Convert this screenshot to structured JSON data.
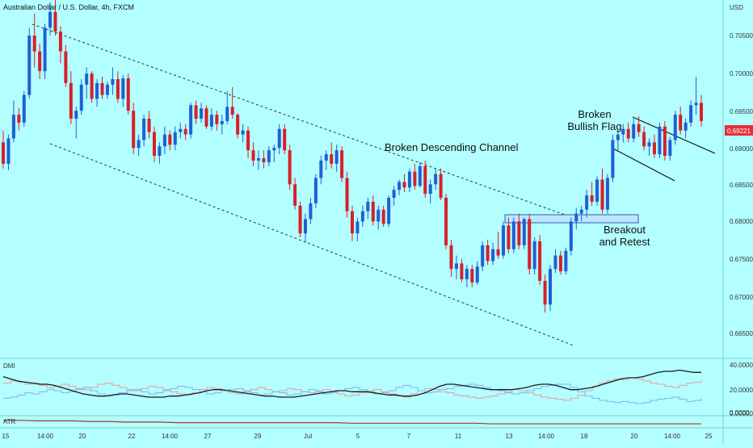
{
  "header": {
    "title": "Australian Dollar / U.S. Dollar, 4h, FXCM"
  },
  "price_axis": {
    "currency": "USD",
    "ticks": [
      "0.70500",
      "0.70000",
      "0.69500",
      "0.69000",
      "0.68500",
      "0.68000",
      "0.67500",
      "0.67000",
      "0.66500"
    ],
    "current_price": "0.69221"
  },
  "time_axis": {
    "labels": [
      "15",
      "14:00",
      "20",
      "22",
      "14:00",
      "27",
      "29",
      "Jul",
      "5",
      "7",
      "11",
      "13",
      "14:00",
      "18",
      "20",
      "14:00",
      "25"
    ]
  },
  "annotations": {
    "channel": "Broken Descending Channel",
    "flag_line1": "Broken",
    "flag_line2": "Bullish Flag",
    "breakout_line1": "Breakout",
    "breakout_line2": "and Retest"
  },
  "dmi_panel": {
    "label": "DMI",
    "ticks": [
      "40.0000",
      "20.0000",
      "0.0000"
    ]
  },
  "atr_panel": {
    "label": "ATR",
    "tick": "0.00000"
  },
  "colors": {
    "background": "#b3ffff",
    "bull": "#1f5fd6",
    "bear": "#d6202a",
    "price_badge": "#e5303a",
    "zone_fill": "#bfe6ff",
    "zone_stroke": "#2a5fb0"
  },
  "chart_data": {
    "type": "candlestick",
    "symbol": "AUD/USD",
    "timeframe": "4h",
    "ylim": [
      0.6625,
      0.7075
    ],
    "candles": [
      [
        0.6895,
        0.691,
        0.6862,
        0.6868
      ],
      [
        0.6868,
        0.6905,
        0.686,
        0.69
      ],
      [
        0.69,
        0.6948,
        0.6895,
        0.693
      ],
      [
        0.693,
        0.6938,
        0.691,
        0.692
      ],
      [
        0.692,
        0.696,
        0.6915,
        0.6955
      ],
      [
        0.6955,
        0.704,
        0.695,
        0.703
      ],
      [
        0.703,
        0.7058,
        0.699,
        0.701
      ],
      [
        0.701,
        0.702,
        0.6975,
        0.6985
      ],
      [
        0.6985,
        0.7045,
        0.6975,
        0.704
      ],
      [
        0.704,
        0.7072,
        0.703,
        0.706
      ],
      [
        0.706,
        0.708,
        0.703,
        0.7035
      ],
      [
        0.7035,
        0.7042,
        0.6995,
        0.701
      ],
      [
        0.701,
        0.7018,
        0.6965,
        0.697
      ],
      [
        0.697,
        0.6985,
        0.6918,
        0.6925
      ],
      [
        0.6925,
        0.694,
        0.69,
        0.6935
      ],
      [
        0.6935,
        0.6975,
        0.693,
        0.6968
      ],
      [
        0.6968,
        0.699,
        0.695,
        0.6982
      ],
      [
        0.6982,
        0.6985,
        0.6945,
        0.695
      ],
      [
        0.695,
        0.6975,
        0.694,
        0.697
      ],
      [
        0.697,
        0.6978,
        0.695,
        0.6955
      ],
      [
        0.6955,
        0.6972,
        0.695,
        0.6968
      ],
      [
        0.6968,
        0.699,
        0.6955,
        0.6975
      ],
      [
        0.6975,
        0.6985,
        0.6945,
        0.695
      ],
      [
        0.695,
        0.698,
        0.694,
        0.6976
      ],
      [
        0.6976,
        0.6982,
        0.693,
        0.6935
      ],
      [
        0.6935,
        0.6945,
        0.688,
        0.6888
      ],
      [
        0.6888,
        0.6905,
        0.6878,
        0.6898
      ],
      [
        0.6898,
        0.693,
        0.689,
        0.6925
      ],
      [
        0.6925,
        0.6935,
        0.69,
        0.6908
      ],
      [
        0.6908,
        0.6915,
        0.687,
        0.6878
      ],
      [
        0.6878,
        0.6895,
        0.6868,
        0.689
      ],
      [
        0.689,
        0.6915,
        0.688,
        0.6905
      ],
      [
        0.6905,
        0.691,
        0.6885,
        0.6892
      ],
      [
        0.6892,
        0.6915,
        0.6885,
        0.6908
      ],
      [
        0.6908,
        0.692,
        0.69,
        0.6912
      ],
      [
        0.6912,
        0.6918,
        0.6898,
        0.6905
      ],
      [
        0.6905,
        0.6945,
        0.69,
        0.6942
      ],
      [
        0.6942,
        0.6948,
        0.6918,
        0.6925
      ],
      [
        0.6925,
        0.6945,
        0.692,
        0.6938
      ],
      [
        0.6938,
        0.6942,
        0.6912,
        0.6915
      ],
      [
        0.6915,
        0.6938,
        0.691,
        0.693
      ],
      [
        0.693,
        0.6935,
        0.691,
        0.6918
      ],
      [
        0.6918,
        0.693,
        0.6905,
        0.6922
      ],
      [
        0.6922,
        0.696,
        0.6918,
        0.694
      ],
      [
        0.694,
        0.6965,
        0.6925,
        0.693
      ],
      [
        0.693,
        0.6932,
        0.69,
        0.6905
      ],
      [
        0.6905,
        0.6918,
        0.6895,
        0.691
      ],
      [
        0.691,
        0.6915,
        0.6875,
        0.6885
      ],
      [
        0.6885,
        0.6895,
        0.6865,
        0.6872
      ],
      [
        0.6872,
        0.6885,
        0.686,
        0.6875
      ],
      [
        0.6875,
        0.6885,
        0.6862,
        0.687
      ],
      [
        0.687,
        0.689,
        0.6865,
        0.6885
      ],
      [
        0.6885,
        0.6892,
        0.687,
        0.6888
      ],
      [
        0.6888,
        0.6918,
        0.688,
        0.6912
      ],
      [
        0.6912,
        0.6918,
        0.688,
        0.6885
      ],
      [
        0.6885,
        0.6892,
        0.6835,
        0.6842
      ],
      [
        0.6842,
        0.685,
        0.681,
        0.6815
      ],
      [
        0.6815,
        0.682,
        0.6775,
        0.678
      ],
      [
        0.678,
        0.6805,
        0.6768,
        0.6798
      ],
      [
        0.6798,
        0.6825,
        0.6792,
        0.6818
      ],
      [
        0.6818,
        0.6855,
        0.6812,
        0.685
      ],
      [
        0.685,
        0.6878,
        0.6842,
        0.6872
      ],
      [
        0.6872,
        0.6885,
        0.686,
        0.688
      ],
      [
        0.688,
        0.6895,
        0.6862,
        0.6868
      ],
      [
        0.6868,
        0.6892,
        0.6858,
        0.6885
      ],
      [
        0.6885,
        0.689,
        0.6845,
        0.685
      ],
      [
        0.685,
        0.6858,
        0.68,
        0.6808
      ],
      [
        0.6808,
        0.6815,
        0.677,
        0.678
      ],
      [
        0.678,
        0.68,
        0.677,
        0.6795
      ],
      [
        0.6795,
        0.6815,
        0.6788,
        0.6808
      ],
      [
        0.6808,
        0.6825,
        0.6798,
        0.682
      ],
      [
        0.682,
        0.6828,
        0.679,
        0.6795
      ],
      [
        0.6795,
        0.6815,
        0.6785,
        0.681
      ],
      [
        0.681,
        0.6815,
        0.6788,
        0.6792
      ],
      [
        0.6792,
        0.6828,
        0.6788,
        0.6825
      ],
      [
        0.6825,
        0.684,
        0.6815,
        0.6835
      ],
      [
        0.6835,
        0.6848,
        0.6828,
        0.6845
      ],
      [
        0.6845,
        0.6855,
        0.6832,
        0.6838
      ],
      [
        0.6838,
        0.6862,
        0.6832,
        0.6858
      ],
      [
        0.6858,
        0.6868,
        0.6835,
        0.684
      ],
      [
        0.684,
        0.687,
        0.6838,
        0.6865
      ],
      [
        0.6865,
        0.6872,
        0.6825,
        0.683
      ],
      [
        0.683,
        0.6848,
        0.6818,
        0.6842
      ],
      [
        0.6842,
        0.6862,
        0.6835,
        0.6855
      ],
      [
        0.6855,
        0.6862,
        0.6822,
        0.6825
      ],
      [
        0.6825,
        0.683,
        0.676,
        0.6765
      ],
      [
        0.6765,
        0.6772,
        0.6725,
        0.6735
      ],
      [
        0.6735,
        0.6752,
        0.6722,
        0.6742
      ],
      [
        0.6742,
        0.6748,
        0.6718,
        0.6722
      ],
      [
        0.6722,
        0.674,
        0.6712,
        0.6735
      ],
      [
        0.6735,
        0.674,
        0.6712,
        0.6718
      ],
      [
        0.6718,
        0.6745,
        0.6715,
        0.6738
      ],
      [
        0.6738,
        0.677,
        0.6732,
        0.6765
      ],
      [
        0.6765,
        0.6772,
        0.674,
        0.6745
      ],
      [
        0.6745,
        0.6768,
        0.674,
        0.676
      ],
      [
        0.676,
        0.6782,
        0.6748,
        0.6752
      ],
      [
        0.6752,
        0.6795,
        0.6748,
        0.679
      ],
      [
        0.679,
        0.68,
        0.6755,
        0.676
      ],
      [
        0.676,
        0.68,
        0.6755,
        0.6795
      ],
      [
        0.6795,
        0.6805,
        0.676,
        0.6765
      ],
      [
        0.6765,
        0.68,
        0.676,
        0.6798
      ],
      [
        0.6798,
        0.6805,
        0.6728,
        0.6735
      ],
      [
        0.6735,
        0.6775,
        0.6728,
        0.677
      ],
      [
        0.677,
        0.6778,
        0.6715,
        0.672
      ],
      [
        0.672,
        0.6728,
        0.668,
        0.669
      ],
      [
        0.669,
        0.674,
        0.6682,
        0.6735
      ],
      [
        0.6735,
        0.676,
        0.673,
        0.6752
      ],
      [
        0.6752,
        0.6758,
        0.6728,
        0.6732
      ],
      [
        0.6732,
        0.6762,
        0.6728,
        0.6758
      ],
      [
        0.6758,
        0.68,
        0.6752,
        0.6795
      ],
      [
        0.6795,
        0.6812,
        0.6785,
        0.6805
      ],
      [
        0.6805,
        0.6815,
        0.6795,
        0.681
      ],
      [
        0.681,
        0.6835,
        0.68,
        0.6828
      ],
      [
        0.6828,
        0.6845,
        0.6815,
        0.682
      ],
      [
        0.682,
        0.6852,
        0.6815,
        0.6848
      ],
      [
        0.6848,
        0.6862,
        0.6805,
        0.681
      ],
      [
        0.681,
        0.6855,
        0.6805,
        0.685
      ],
      [
        0.685,
        0.6905,
        0.6845,
        0.6898
      ],
      [
        0.6898,
        0.691,
        0.6885,
        0.6905
      ],
      [
        0.6905,
        0.6918,
        0.6895,
        0.6912
      ],
      [
        0.6912,
        0.692,
        0.6895,
        0.69
      ],
      [
        0.69,
        0.6925,
        0.6895,
        0.6918
      ],
      [
        0.6918,
        0.6928,
        0.6902,
        0.6908
      ],
      [
        0.6908,
        0.6915,
        0.6885,
        0.689
      ],
      [
        0.689,
        0.69,
        0.6878,
        0.6895
      ],
      [
        0.6895,
        0.6905,
        0.6875,
        0.688
      ],
      [
        0.688,
        0.692,
        0.6875,
        0.6915
      ],
      [
        0.6915,
        0.6922,
        0.6872,
        0.6878
      ],
      [
        0.6878,
        0.6902,
        0.6872,
        0.6898
      ],
      [
        0.6898,
        0.6935,
        0.6892,
        0.693
      ],
      [
        0.693,
        0.694,
        0.6905,
        0.691
      ],
      [
        0.691,
        0.6925,
        0.69,
        0.692
      ],
      [
        0.692,
        0.6948,
        0.6915,
        0.6942
      ],
      [
        0.6942,
        0.6978,
        0.693,
        0.6945
      ],
      [
        0.6945,
        0.6955,
        0.6915,
        0.6922
      ]
    ],
    "dmi": {
      "ylim": [
        0,
        45
      ],
      "adx": [
        34,
        32,
        30,
        29,
        28,
        27,
        27,
        26,
        24,
        22,
        20,
        18,
        17,
        16,
        16,
        17,
        18,
        18,
        17,
        16,
        15,
        15,
        15,
        16,
        16,
        17,
        18,
        19,
        21,
        22,
        22,
        21,
        20,
        19,
        18,
        17,
        16,
        16,
        15,
        15,
        15,
        16,
        17,
        18,
        19,
        20,
        21,
        21,
        20,
        20,
        20,
        19,
        18,
        17,
        17,
        16,
        16,
        17,
        19,
        22,
        25,
        27,
        27,
        26,
        25,
        24,
        23,
        22,
        22,
        22,
        22,
        23,
        24,
        26,
        27,
        27,
        26,
        24,
        22,
        22,
        23,
        24,
        26,
        28,
        30,
        32,
        33,
        33,
        34,
        36,
        38,
        39,
        39,
        40,
        39,
        38,
        38
      ],
      "di_plus": [
        28,
        30,
        29,
        27,
        28,
        26,
        24,
        25,
        27,
        25,
        23,
        22,
        24,
        27,
        28,
        26,
        24,
        22,
        21,
        23,
        25,
        24,
        22,
        20,
        18,
        17,
        19,
        22,
        24,
        23,
        21,
        19,
        18,
        20,
        22,
        24,
        22,
        20,
        21,
        23,
        22,
        20,
        19,
        21,
        22,
        20,
        18,
        16,
        17,
        19,
        21,
        22,
        20,
        18,
        16,
        15,
        18,
        21,
        23,
        22,
        20,
        19,
        17,
        16,
        15,
        14,
        15,
        16,
        18,
        20,
        22,
        21,
        19,
        17,
        15,
        14,
        13,
        12,
        14,
        17,
        21,
        25,
        28,
        30,
        32,
        31,
        33,
        32,
        30,
        28,
        27,
        25,
        24,
        26,
        28,
        29,
        31
      ],
      "di_minus": [
        14,
        15,
        17,
        19,
        18,
        20,
        22,
        21,
        19,
        20,
        22,
        24,
        21,
        18,
        16,
        17,
        19,
        21,
        22,
        20,
        18,
        19,
        21,
        23,
        25,
        24,
        22,
        20,
        18,
        19,
        21,
        22,
        23,
        21,
        19,
        17,
        18,
        20,
        19,
        17,
        18,
        20,
        22,
        20,
        18,
        19,
        21,
        23,
        24,
        22,
        20,
        18,
        19,
        21,
        24,
        26,
        24,
        21,
        19,
        20,
        22,
        23,
        25,
        26,
        27,
        26,
        24,
        22,
        21,
        19,
        18,
        19,
        21,
        23,
        25,
        26,
        27,
        27,
        24,
        20,
        16,
        14,
        12,
        11,
        10,
        11,
        10,
        9,
        10,
        12,
        13,
        14,
        15,
        13,
        11,
        12,
        14
      ]
    },
    "atr": [
      0.004,
      0.004,
      0.0039,
      0.0039,
      0.0039,
      0.0038,
      0.0038,
      0.0037,
      0.0037,
      0.0037,
      0.0036,
      0.0036,
      0.0036,
      0.0036,
      0.0036,
      0.0036,
      0.0036,
      0.0036,
      0.0036,
      0.0036,
      0.0035,
      0.0035,
      0.0035,
      0.0035,
      0.0035,
      0.0035,
      0.0035,
      0.0035,
      0.0034,
      0.0034,
      0.0034,
      0.0034,
      0.0034,
      0.0034,
      0.0034,
      0.0034,
      0.0034,
      0.0034,
      0.0034,
      0.0034,
      0.0034
    ]
  }
}
